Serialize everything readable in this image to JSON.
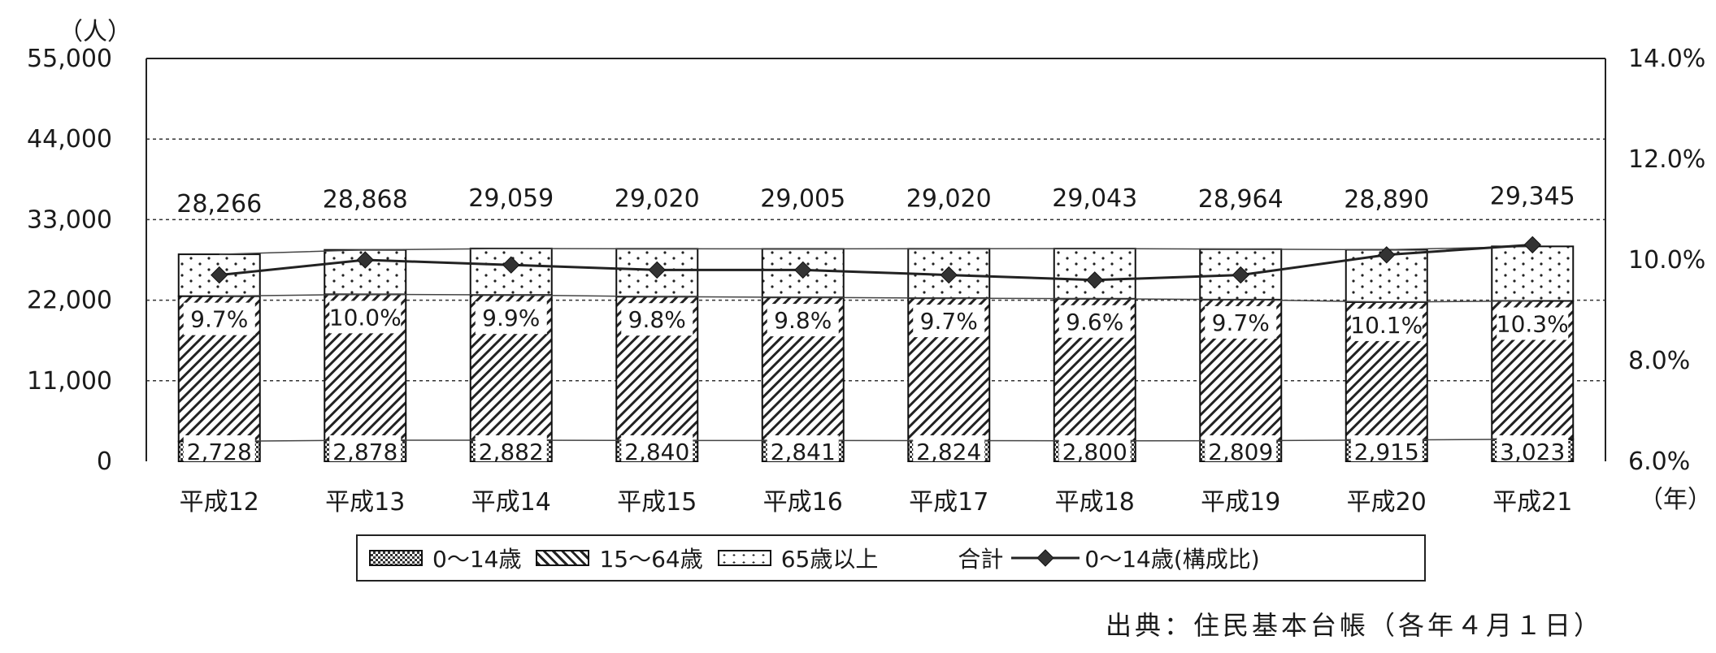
{
  "unit_left": "（人）",
  "unit_right": "（年）",
  "source": "出典：住民基本台帳（各年４月１日）",
  "legend": {
    "age_0_14": "0～14歳",
    "age_15_64": "15～64歳",
    "age_65_plus": "65歳以上",
    "total": "合計",
    "ratio": "0～14歳(構成比)"
  },
  "colors": {
    "axis": "#222222",
    "grid": "#333333",
    "bar_border": "#111111",
    "line": "#222222"
  },
  "chart_data": {
    "type": "bar",
    "stacked": true,
    "categories": [
      "平成12",
      "平成13",
      "平成14",
      "平成15",
      "平成16",
      "平成17",
      "平成18",
      "平成19",
      "平成20",
      "平成21"
    ],
    "totals": [
      28266,
      28868,
      29059,
      29020,
      29005,
      29020,
      29043,
      28964,
      28890,
      29345
    ],
    "total_labels": [
      "28,266",
      "28,868",
      "29,059",
      "29,020",
      "29,005",
      "29,020",
      "29,043",
      "28,964",
      "28,890",
      "29,345"
    ],
    "series": [
      {
        "name": "0～14歳",
        "values": [
          2728,
          2878,
          2882,
          2840,
          2841,
          2824,
          2800,
          2809,
          2915,
          3023
        ],
        "labels": [
          "2,728",
          "2,878",
          "2,882",
          "2,840",
          "2,841",
          "2,824",
          "2,800",
          "2,809",
          "2,915",
          "3,023"
        ]
      },
      {
        "name": "15～64歳",
        "values": [
          19822,
          19924,
          19831,
          19646,
          19546,
          19452,
          19399,
          19269,
          18829,
          18879
        ]
      },
      {
        "name": "65歳以上",
        "values": [
          5716,
          6066,
          6346,
          6534,
          6618,
          6744,
          6844,
          6886,
          7146,
          7443
        ]
      }
    ],
    "ratio_series": {
      "name": "0～14歳(構成比)",
      "values": [
        9.7,
        10.0,
        9.9,
        9.8,
        9.8,
        9.7,
        9.6,
        9.7,
        10.1,
        10.3
      ],
      "labels": [
        "9.7%",
        "10.0%",
        "9.9%",
        "9.8%",
        "9.8%",
        "9.7%",
        "9.6%",
        "9.7%",
        "10.1%",
        "10.3%"
      ]
    },
    "y_left": {
      "ylim": [
        0,
        55000
      ],
      "ticks": [
        "0",
        "11,000",
        "22,000",
        "33,000",
        "44,000",
        "55,000"
      ]
    },
    "y_right": {
      "ylim": [
        6.0,
        14.0
      ],
      "ticks": [
        "6.0%",
        "8.0%",
        "10.0%",
        "12.0%",
        "14.0%"
      ]
    },
    "grid": true
  }
}
